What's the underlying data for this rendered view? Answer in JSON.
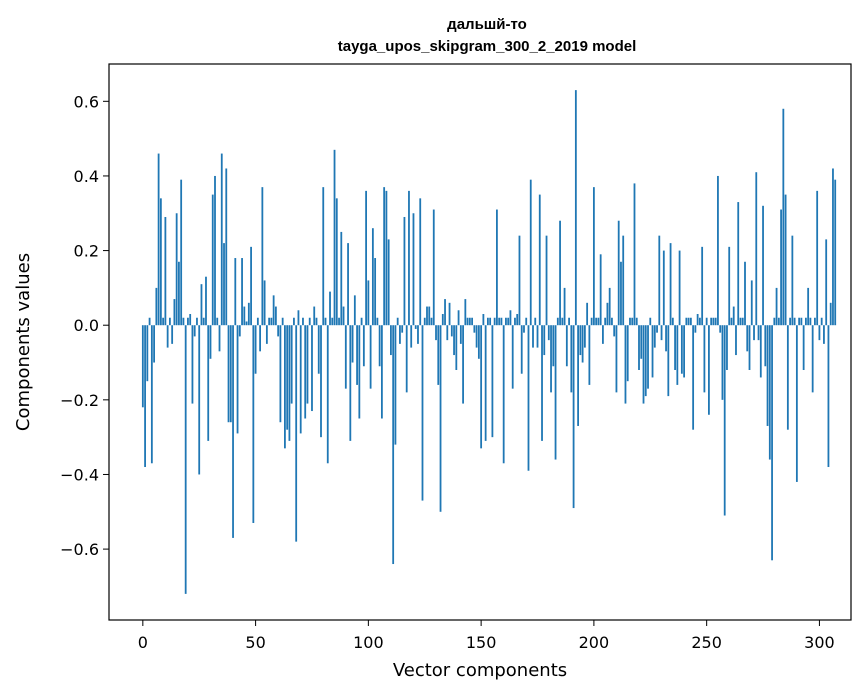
{
  "chart_data": {
    "type": "bar",
    "title": "дальшй-то",
    "subtitle": "tayga_upos_skipgram_300_2_2019 model",
    "xlabel": "Vector components",
    "ylabel": "Components values",
    "xlim": [
      -15,
      314
    ],
    "ylim": [
      -0.79,
      0.7
    ],
    "xticks": [
      0,
      50,
      100,
      150,
      200,
      250,
      300
    ],
    "yticks": [
      -0.6,
      -0.4,
      -0.2,
      0.0,
      0.2,
      0.4,
      0.6
    ],
    "xtick_labels": [
      "0",
      "50",
      "100",
      "150",
      "200",
      "250",
      "300"
    ],
    "ytick_labels": [
      "−0.6",
      "−0.4",
      "−0.2",
      "0.0",
      "0.2",
      "0.4",
      "0.6"
    ],
    "grid": false,
    "bar_color": "#1f77b4",
    "values": [
      -0.22,
      -0.38,
      -0.15,
      0.02,
      -0.37,
      -0.1,
      0.1,
      0.46,
      0.34,
      0.02,
      0.29,
      -0.06,
      0.02,
      -0.05,
      0.07,
      0.3,
      0.17,
      0.39,
      0.02,
      -0.72,
      0.02,
      0.03,
      -0.21,
      -0.03,
      0.02,
      -0.4,
      0.11,
      0.02,
      0.13,
      -0.31,
      -0.09,
      0.35,
      0.4,
      0.02,
      -0.07,
      0.46,
      0.22,
      0.42,
      -0.26,
      -0.26,
      -0.57,
      0.18,
      -0.29,
      -0.03,
      0.18,
      0.05,
      0.01,
      0.06,
      0.21,
      -0.53,
      -0.13,
      0.02,
      -0.07,
      0.37,
      0.12,
      -0.05,
      0.02,
      0.02,
      0.08,
      0.05,
      -0.03,
      -0.26,
      0.02,
      -0.33,
      -0.28,
      -0.31,
      -0.21,
      0.02,
      -0.58,
      0.04,
      -0.29,
      0.02,
      -0.25,
      -0.21,
      0.02,
      -0.23,
      0.05,
      0.02,
      -0.13,
      -0.3,
      0.37,
      0.02,
      -0.37,
      0.09,
      0.02,
      0.47,
      0.34,
      0.02,
      0.25,
      0.05,
      -0.17,
      0.22,
      -0.31,
      -0.1,
      0.08,
      -0.16,
      -0.25,
      0.02,
      -0.11,
      0.36,
      0.12,
      -0.17,
      0.26,
      0.18,
      0.02,
      -0.11,
      -0.25,
      0.37,
      0.36,
      0.23,
      -0.08,
      -0.64,
      -0.32,
      0.02,
      -0.05,
      -0.02,
      0.29,
      -0.18,
      0.36,
      -0.06,
      0.3,
      -0.01,
      -0.05,
      0.34,
      -0.47,
      0.02,
      0.05,
      0.05,
      0.02,
      0.31,
      -0.04,
      -0.16,
      -0.5,
      0.03,
      0.07,
      -0.04,
      0.06,
      -0.03,
      -0.08,
      -0.12,
      0.04,
      -0.05,
      -0.21,
      0.07,
      0.02,
      0.02,
      0.02,
      -0.02,
      -0.06,
      -0.09,
      -0.33,
      0.03,
      -0.31,
      0.02,
      0.02,
      -0.3,
      0.02,
      0.31,
      0.02,
      0.02,
      -0.37,
      0.02,
      0.02,
      0.04,
      -0.17,
      0.02,
      0.03,
      0.24,
      -0.13,
      -0.02,
      0.02,
      -0.39,
      0.39,
      -0.06,
      0.02,
      -0.06,
      0.35,
      -0.31,
      -0.08,
      0.24,
      -0.04,
      -0.18,
      -0.11,
      -0.36,
      0.02,
      0.28,
      0.02,
      0.1,
      -0.11,
      0.02,
      -0.18,
      -0.49,
      0.63,
      -0.27,
      -0.08,
      -0.1,
      -0.06,
      0.06,
      -0.16,
      0.02,
      0.37,
      0.02,
      0.02,
      0.19,
      -0.05,
      0.02,
      0.06,
      0.1,
      0.02,
      -0.03,
      -0.18,
      0.28,
      0.17,
      0.24,
      -0.21,
      -0.15,
      0.02,
      0.02,
      0.38,
      0.02,
      -0.12,
      -0.09,
      -0.21,
      -0.19,
      -0.17,
      0.02,
      -0.14,
      -0.06,
      -0.02,
      0.24,
      -0.04,
      0.2,
      -0.07,
      -0.19,
      0.22,
      0.02,
      -0.12,
      -0.16,
      0.2,
      -0.13,
      -0.14,
      0.02,
      0.02,
      0.02,
      -0.28,
      -0.02,
      0.03,
      0.02,
      0.21,
      -0.18,
      0.02,
      -0.24,
      0.02,
      0.02,
      0.02,
      0.4,
      -0.02,
      -0.2,
      -0.51,
      -0.12,
      0.21,
      0.02,
      0.05,
      -0.08,
      0.33,
      0.02,
      0.02,
      0.17,
      -0.07,
      -0.12,
      0.12,
      -0.04,
      0.41,
      -0.04,
      -0.14,
      0.32,
      -0.11,
      -0.27,
      -0.36,
      -0.63,
      0.02,
      0.1,
      0.02,
      0.31,
      0.58,
      0.35,
      -0.28,
      0.02,
      0.24,
      0.02,
      -0.42,
      0.02,
      0.02,
      -0.12,
      0.02,
      0.1,
      0.02,
      -0.18,
      0.02,
      0.36,
      -0.04,
      0.02,
      -0.05,
      0.23,
      -0.38,
      0.06,
      0.42,
      0.39
    ]
  }
}
